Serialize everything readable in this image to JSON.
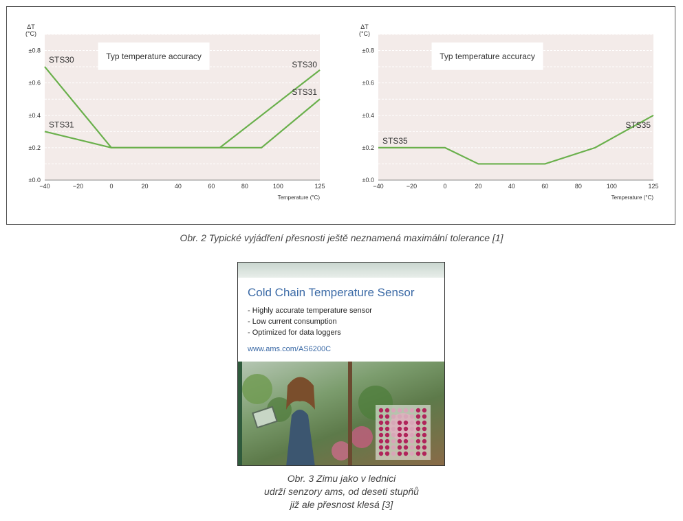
{
  "figure1": {
    "caption": "Obr. 2  Typické vyjádření přesnosti ještě neznamená maximální tolerance [1]"
  },
  "chart_data": [
    {
      "type": "line",
      "title": "Typ temperature accuracy",
      "ylabel_line1": "ΔT",
      "ylabel_line2": "(°C)",
      "xlabel": "Temperature (°C)",
      "xlim": [
        -40,
        125
      ],
      "ylim": [
        0,
        0.9
      ],
      "xticks": [
        -40,
        -20,
        0,
        20,
        40,
        60,
        80,
        100,
        125
      ],
      "xtick_labels": [
        "−40",
        "−20",
        "0",
        "20",
        "40",
        "60",
        "80",
        "100",
        "125"
      ],
      "yticks": [
        0.0,
        0.2,
        0.4,
        0.6,
        0.8
      ],
      "ytick_labels": [
        "±0.0",
        "±0.2",
        "±0.4",
        "±0.6",
        "±0.8"
      ],
      "grid": true,
      "series": [
        {
          "name": "STS30",
          "x": [
            -40,
            0,
            65,
            125
          ],
          "y": [
            0.7,
            0.2,
            0.2,
            0.68
          ],
          "label_left": "STS30",
          "label_right": "STS30"
        },
        {
          "name": "STS31",
          "x": [
            -40,
            0,
            90,
            125
          ],
          "y": [
            0.3,
            0.2,
            0.2,
            0.5
          ],
          "label_left": "STS31",
          "label_right": "STS31"
        }
      ]
    },
    {
      "type": "line",
      "title": "Typ temperature accuracy",
      "ylabel_line1": "ΔT",
      "ylabel_line2": "(°C)",
      "xlabel": "Temperature (°C)",
      "xlim": [
        -40,
        125
      ],
      "ylim": [
        0,
        0.9
      ],
      "xticks": [
        -40,
        -20,
        0,
        20,
        40,
        60,
        80,
        100,
        125
      ],
      "xtick_labels": [
        "−40",
        "−20",
        "0",
        "20",
        "40",
        "60",
        "80",
        "100",
        "125"
      ],
      "yticks": [
        0.0,
        0.2,
        0.4,
        0.6,
        0.8
      ],
      "ytick_labels": [
        "±0.0",
        "±0.2",
        "±0.4",
        "±0.6",
        "±0.8"
      ],
      "grid": true,
      "series": [
        {
          "name": "STS35",
          "x": [
            -40,
            0,
            20,
            60,
            90,
            125
          ],
          "y": [
            0.2,
            0.2,
            0.1,
            0.1,
            0.2,
            0.4
          ],
          "label_left": "STS35",
          "label_right": "STS35"
        }
      ]
    }
  ],
  "colors": {
    "series": "#6ab04c",
    "plot_bg": "#f3ebe9",
    "grid": "#ffffff"
  },
  "ad": {
    "title": "Cold Chain Temperature Sensor",
    "bullets": [
      "- Highly accurate temperature sensor",
      "- Low current consumption",
      "- Optimized for data loggers"
    ],
    "url": "www.ams.com/AS6200C",
    "photo_icon": "greenhouse-woman-with-tablet-photo",
    "logo_icon": "ams-dot-logo"
  },
  "figure2": {
    "caption_lines": [
      "Obr. 3  Zimu jako v lednici",
      "udrží senzory ams, od deseti stupňů",
      "již ale přesnost klesá [3]"
    ]
  }
}
